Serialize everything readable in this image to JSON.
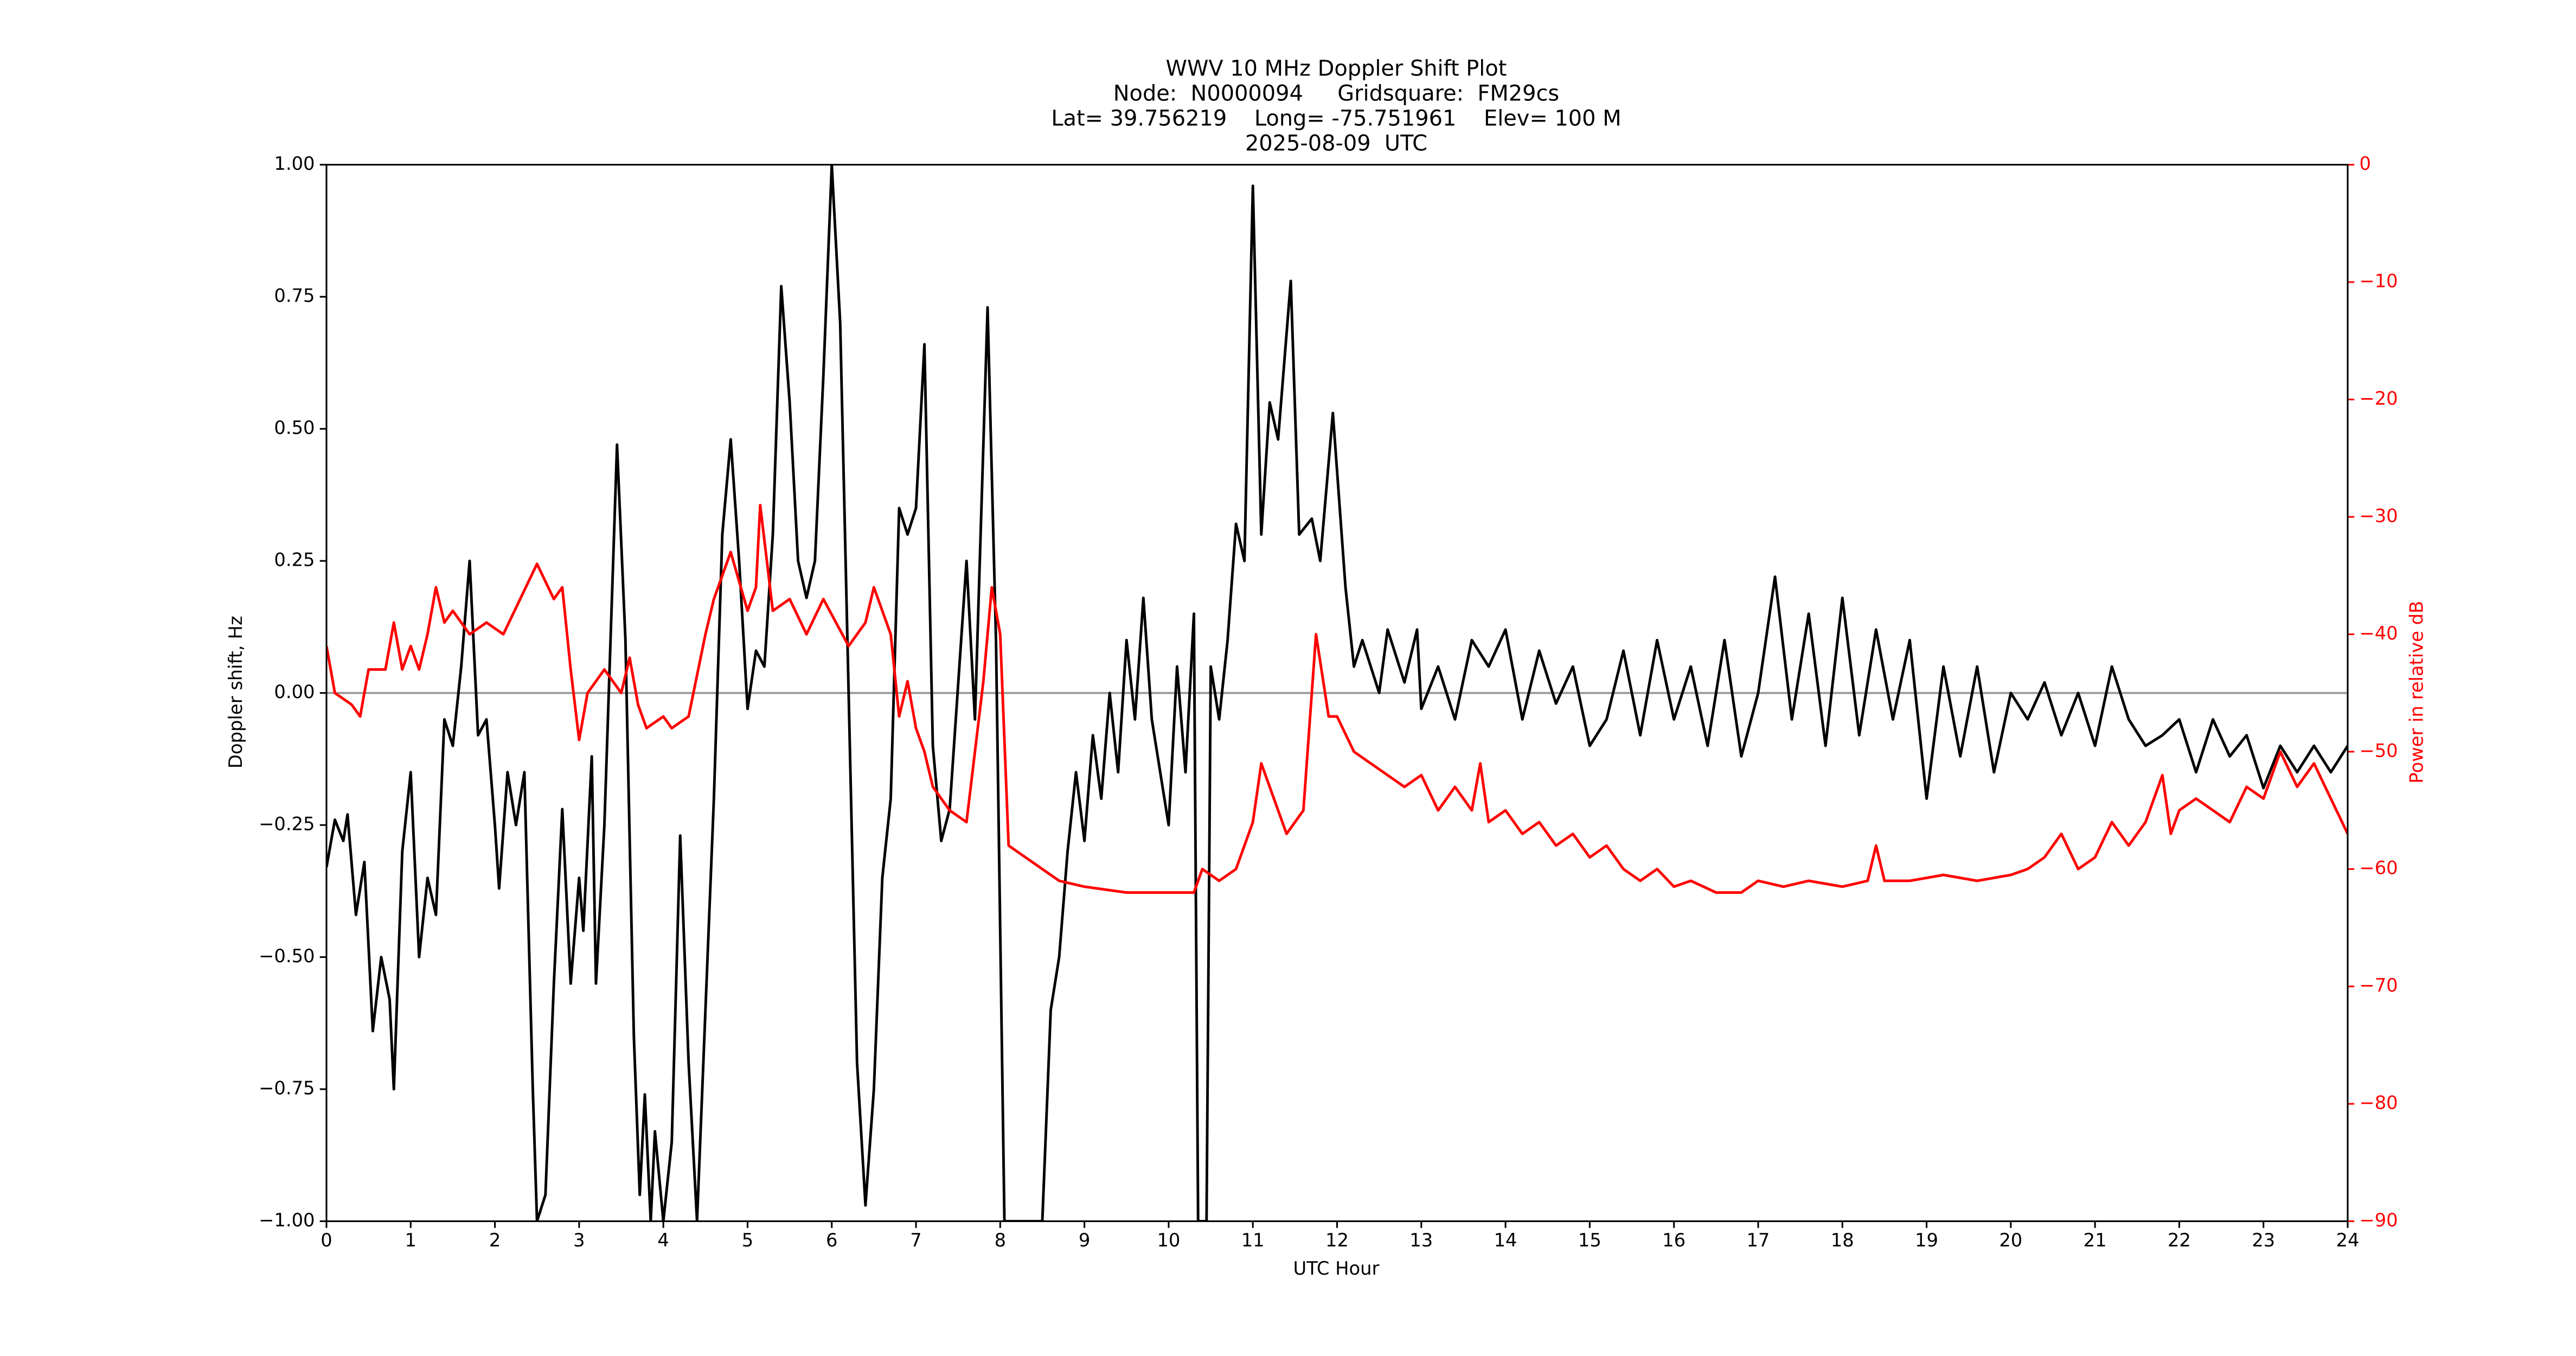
{
  "chart_data": {
    "type": "line",
    "title": [
      "WWV 10 MHz Doppler Shift Plot",
      "Node:  N0000094     Gridsquare:  FM29cs",
      "Lat= 39.756219    Long= -75.751961    Elev= 100 M",
      "2025-08-09  UTC"
    ],
    "xlabel": "UTC Hour",
    "ylabel": "Doppler shift, Hz",
    "y2label": "Power in relative dB",
    "xlim": [
      0,
      24
    ],
    "xticks": [
      0,
      1,
      2,
      3,
      4,
      5,
      6,
      7,
      8,
      9,
      10,
      11,
      12,
      13,
      14,
      15,
      16,
      17,
      18,
      19,
      20,
      21,
      22,
      23,
      24
    ],
    "ylim": [
      -1,
      1
    ],
    "yticks": [
      {
        "value": -1,
        "label": "−1.00"
      },
      {
        "value": -0.75,
        "label": "−0.75"
      },
      {
        "value": -0.5,
        "label": "−0.50"
      },
      {
        "value": -0.25,
        "label": "−0.25"
      },
      {
        "value": 0,
        "label": "0.00"
      },
      {
        "value": 0.25,
        "label": "0.25"
      },
      {
        "value": 0.5,
        "label": "0.50"
      },
      {
        "value": 0.75,
        "label": "0.75"
      },
      {
        "value": 1,
        "label": "1.00"
      }
    ],
    "y2lim": [
      -90,
      0
    ],
    "y2ticks": [
      {
        "value": -90,
        "label": "−90"
      },
      {
        "value": -80,
        "label": "−80"
      },
      {
        "value": -70,
        "label": "−70"
      },
      {
        "value": -60,
        "label": "−60"
      },
      {
        "value": -50,
        "label": "−50"
      },
      {
        "value": -40,
        "label": "−40"
      },
      {
        "value": -30,
        "label": "−30"
      },
      {
        "value": -20,
        "label": "−20"
      },
      {
        "value": -10,
        "label": "−10"
      },
      0
    ],
    "y2color": "#ff0000",
    "hline": {
      "value": 0,
      "color": "#999999"
    },
    "series": [
      {
        "color": "#000000",
        "axis": "y",
        "x": [
          0,
          0.1,
          0.2,
          0.25,
          0.35,
          0.45,
          0.55,
          0.65,
          0.75,
          0.8,
          0.9,
          1.0,
          1.1,
          1.2,
          1.3,
          1.4,
          1.5,
          1.6,
          1.7,
          1.8,
          1.9,
          2.0,
          2.05,
          2.15,
          2.25,
          2.35,
          2.45,
          2.5,
          2.6,
          2.7,
          2.8,
          2.9,
          3.0,
          3.05,
          3.15,
          3.2,
          3.3,
          3.45,
          3.55,
          3.65,
          3.72,
          3.78,
          3.85,
          3.9,
          4.0,
          4.1,
          4.2,
          4.3,
          4.4,
          4.5,
          4.6,
          4.7,
          4.8,
          4.9,
          5.0,
          5.1,
          5.2,
          5.3,
          5.4,
          5.5,
          5.6,
          5.7,
          5.8,
          5.9,
          6.0,
          6.1,
          6.2,
          6.3,
          6.4,
          6.5,
          6.6,
          6.7,
          6.8,
          6.9,
          7.0,
          7.1,
          7.2,
          7.3,
          7.4,
          7.6,
          7.7,
          7.85,
          7.95,
          8.05,
          8.3,
          8.5,
          8.6,
          8.7,
          8.8,
          8.9,
          9.0,
          9.1,
          9.2,
          9.3,
          9.4,
          9.5,
          9.6,
          9.7,
          9.8,
          9.9,
          10.0,
          10.1,
          10.2,
          10.3,
          10.35,
          10.45,
          10.5,
          10.6,
          10.7,
          10.8,
          10.9,
          11.0,
          11.1,
          11.2,
          11.3,
          11.45,
          11.55,
          11.7,
          11.8,
          11.95,
          12.1,
          12.2,
          12.3,
          12.5,
          12.6,
          12.8,
          12.95,
          13.0,
          13.2,
          13.4,
          13.6,
          13.8,
          14.0,
          14.2,
          14.4,
          14.6,
          14.8,
          15.0,
          15.2,
          15.4,
          15.6,
          15.8,
          16.0,
          16.2,
          16.4,
          16.6,
          16.8,
          17.0,
          17.2,
          17.4,
          17.6,
          17.8,
          18.0,
          18.2,
          18.4,
          18.6,
          18.8,
          19.0,
          19.2,
          19.4,
          19.6,
          19.8,
          20.0,
          20.2,
          20.4,
          20.6,
          20.8,
          21.0,
          21.2,
          21.4,
          21.6,
          21.8,
          22.0,
          22.2,
          22.4,
          22.6,
          22.8,
          23.0,
          23.2,
          23.4,
          23.6,
          23.8,
          24.0
        ],
        "values": [
          -0.33,
          -0.24,
          -0.28,
          -0.23,
          -0.42,
          -0.32,
          -0.64,
          -0.5,
          -0.58,
          -0.75,
          -0.3,
          -0.15,
          -0.5,
          -0.35,
          -0.42,
          -0.05,
          -0.1,
          0.05,
          0.25,
          -0.08,
          -0.05,
          -0.25,
          -0.37,
          -0.15,
          -0.25,
          -0.15,
          -0.75,
          -1.0,
          -0.95,
          -0.55,
          -0.22,
          -0.55,
          -0.35,
          -0.45,
          -0.12,
          -0.55,
          -0.25,
          0.47,
          0.1,
          -0.65,
          -0.95,
          -0.76,
          -1.0,
          -0.83,
          -1.0,
          -0.85,
          -0.27,
          -0.7,
          -1.0,
          -0.6,
          -0.2,
          0.3,
          0.48,
          0.25,
          -0.03,
          0.08,
          0.05,
          0.3,
          0.77,
          0.55,
          0.25,
          0.18,
          0.25,
          0.6,
          1.0,
          0.7,
          0.0,
          -0.7,
          -0.97,
          -0.75,
          -0.35,
          -0.2,
          0.35,
          0.3,
          0.35,
          0.66,
          -0.1,
          -0.28,
          -0.22,
          0.25,
          -0.05,
          0.73,
          0.1,
          -1.0,
          -1.0,
          -1.0,
          -0.6,
          -0.5,
          -0.3,
          -0.15,
          -0.28,
          -0.08,
          -0.2,
          0.0,
          -0.15,
          0.1,
          -0.05,
          0.18,
          -0.05,
          -0.15,
          -0.25,
          0.05,
          -0.15,
          0.15,
          -1.0,
          -1.0,
          0.05,
          -0.05,
          0.1,
          0.32,
          0.25,
          0.96,
          0.3,
          0.55,
          0.48,
          0.78,
          0.3,
          0.33,
          0.25,
          0.53,
          0.2,
          0.05,
          0.1,
          0.0,
          0.12,
          0.02,
          0.12,
          -0.03,
          0.05,
          -0.05,
          0.1,
          0.05,
          0.12,
          -0.05,
          0.08,
          -0.02,
          0.05,
          -0.1,
          -0.05,
          0.08,
          -0.08,
          0.1,
          -0.05,
          0.05,
          -0.1,
          0.1,
          -0.12,
          0.0,
          0.22,
          -0.05,
          0.15,
          -0.1,
          0.18,
          -0.08,
          0.12,
          -0.05,
          0.1,
          -0.2,
          0.05,
          -0.12,
          0.05,
          -0.15,
          0.0,
          -0.05,
          0.02,
          -0.08,
          0.0,
          -0.1,
          0.05,
          -0.05,
          -0.1,
          -0.08,
          -0.05,
          -0.15,
          -0.05,
          -0.12,
          -0.08,
          -0.18,
          -0.1,
          -0.15,
          -0.1,
          -0.15,
          -0.1
        ]
      },
      {
        "color": "#ff0000",
        "axis": "y2",
        "x": [
          0,
          0.1,
          0.3,
          0.4,
          0.5,
          0.7,
          0.8,
          0.9,
          1.0,
          1.1,
          1.2,
          1.3,
          1.4,
          1.5,
          1.7,
          1.9,
          2.1,
          2.3,
          2.5,
          2.7,
          2.8,
          2.9,
          3.0,
          3.1,
          3.3,
          3.5,
          3.6,
          3.7,
          3.8,
          4.0,
          4.1,
          4.3,
          4.5,
          4.6,
          4.8,
          5.0,
          5.1,
          5.15,
          5.3,
          5.5,
          5.7,
          5.9,
          6.2,
          6.4,
          6.5,
          6.7,
          6.8,
          6.9,
          7.0,
          7.1,
          7.2,
          7.4,
          7.6,
          7.8,
          7.9,
          8.0,
          8.1,
          8.3,
          8.5,
          8.7,
          9.0,
          9.5,
          10.0,
          10.3,
          10.4,
          10.6,
          10.8,
          11.0,
          11.1,
          11.2,
          11.4,
          11.6,
          11.75,
          11.9,
          12.0,
          12.2,
          12.4,
          12.6,
          12.8,
          13.0,
          13.2,
          13.4,
          13.6,
          13.7,
          13.8,
          14.0,
          14.2,
          14.4,
          14.6,
          14.8,
          15.0,
          15.2,
          15.4,
          15.6,
          15.8,
          16.0,
          16.2,
          16.5,
          16.8,
          17.0,
          17.3,
          17.6,
          18.0,
          18.3,
          18.4,
          18.5,
          18.8,
          19.2,
          19.6,
          20.0,
          20.2,
          20.4,
          20.6,
          20.8,
          21.0,
          21.2,
          21.4,
          21.6,
          21.8,
          21.9,
          22.0,
          22.2,
          22.4,
          22.6,
          22.8,
          23.0,
          23.2,
          23.4,
          23.6,
          23.8,
          24.0
        ],
        "values": [
          -41,
          -45,
          -46,
          -47,
          -43,
          -43,
          -39,
          -43,
          -41,
          -43,
          -40,
          -36,
          -39,
          -38,
          -40,
          -39,
          -40,
          -37,
          -34,
          -37,
          -36,
          -43,
          -49,
          -45,
          -43,
          -45,
          -42,
          -46,
          -48,
          -47,
          -48,
          -47,
          -40,
          -37,
          -33,
          -38,
          -36,
          -29,
          -38,
          -37,
          -40,
          -37,
          -41,
          -39,
          -36,
          -40,
          -47,
          -44,
          -48,
          -50,
          -53,
          -55,
          -56,
          -44,
          -36,
          -40,
          -58,
          -59,
          -60,
          -61,
          -61.5,
          -62,
          -62,
          -62,
          -60,
          -61,
          -60,
          -56,
          -51,
          -53,
          -57,
          -55,
          -40,
          -47,
          -47,
          -50,
          -51,
          -52,
          -53,
          -52,
          -55,
          -53,
          -55,
          -51,
          -56,
          -55,
          -57,
          -56,
          -58,
          -57,
          -59,
          -58,
          -60,
          -61,
          -60,
          -61.5,
          -61,
          -62,
          -62,
          -61,
          -61.5,
          -61,
          -61.5,
          -61,
          -58,
          -61,
          -61,
          -60.5,
          -61,
          -60.5,
          -60,
          -59,
          -57,
          -60,
          -59,
          -56,
          -58,
          -56,
          -52,
          -57,
          -55,
          -54,
          -55,
          -56,
          -53,
          -54,
          -50,
          -53,
          -51,
          -54,
          -57
        ]
      }
    ]
  }
}
